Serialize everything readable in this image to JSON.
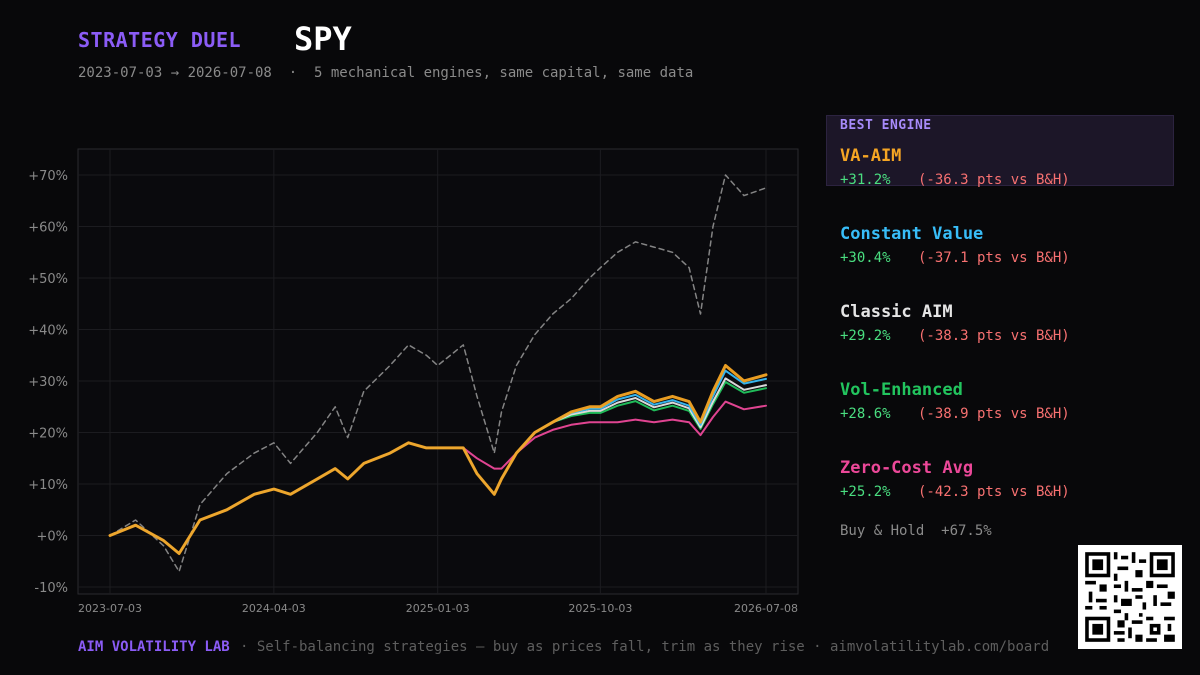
{
  "header": {
    "brand": "STRATEGY DUEL",
    "ticker": "SPY",
    "subtitle": "2023-07-03 → 2026-07-08  ·  5 mechanical engines, same capital, same data"
  },
  "panel": {
    "best_label": "BEST ENGINE",
    "engines": [
      {
        "name": "VA-AIM",
        "ret": "+31.2%",
        "diff": "(-36.3 pts vs B&H)",
        "color": "#f5a524"
      },
      {
        "name": "Constant Value",
        "ret": "+30.4%",
        "diff": "(-37.1 pts vs B&H)",
        "color": "#38bdf8"
      },
      {
        "name": "Classic AIM",
        "ret": "+29.2%",
        "diff": "(-38.3 pts vs B&H)",
        "color": "#e5e5e5"
      },
      {
        "name": "Vol-Enhanced",
        "ret": "+28.6%",
        "diff": "(-38.9 pts vs B&H)",
        "color": "#22c55e"
      },
      {
        "name": "Zero-Cost Avg",
        "ret": "+25.2%",
        "diff": "(-42.3 pts vs B&H)",
        "color": "#ec4899"
      }
    ],
    "buy_hold": "Buy & Hold  +67.5%"
  },
  "footer": {
    "brand": "AIM VOLATILITY LAB",
    "text": "· Self-balancing strategies — buy as prices fall, trim as they rise · aimvolatilitylab.com/board"
  },
  "chart_data": {
    "type": "line",
    "x": [
      "2023-07-03",
      "2023-08-15",
      "2023-10-01",
      "2023-10-27",
      "2023-12-01",
      "2024-01-15",
      "2024-03-01",
      "2024-04-03",
      "2024-05-01",
      "2024-06-15",
      "2024-07-15",
      "2024-08-05",
      "2024-09-01",
      "2024-10-15",
      "2024-11-15",
      "2024-12-15",
      "2025-01-03",
      "2025-02-15",
      "2025-03-10",
      "2025-04-08",
      "2025-04-20",
      "2025-05-15",
      "2025-06-15",
      "2025-07-15",
      "2025-08-15",
      "2025-09-15",
      "2025-10-03",
      "2025-11-01",
      "2025-12-01",
      "2026-01-01",
      "2026-02-01",
      "2026-03-01",
      "2026-03-20",
      "2026-04-10",
      "2026-05-01",
      "2026-06-01",
      "2026-07-08"
    ],
    "series": [
      {
        "name": "VA-AIM",
        "color": "#f5a524",
        "width": 3,
        "dashed": false,
        "values": [
          0,
          2,
          -1,
          -3.5,
          3,
          5,
          8,
          9,
          8,
          11,
          13,
          11,
          14,
          16,
          18,
          17,
          17,
          17,
          12,
          8,
          11,
          16,
          20,
          22,
          24,
          25,
          25,
          27,
          28,
          26,
          27,
          26,
          22,
          28,
          33,
          30,
          31.2
        ]
      },
      {
        "name": "Constant Value",
        "color": "#38bdf8",
        "width": 2,
        "dashed": false,
        "values": [
          0,
          2,
          -1,
          -3.5,
          3,
          5,
          8,
          9,
          8,
          11,
          13,
          11,
          14,
          16,
          18,
          17,
          17,
          17,
          12,
          8,
          11,
          16,
          20,
          22,
          23.8,
          24.6,
          24.6,
          26.4,
          27.3,
          25.4,
          26.3,
          25.2,
          21.5,
          27,
          32,
          29.5,
          30.4
        ]
      },
      {
        "name": "Classic AIM",
        "color": "#e5e5e5",
        "width": 2,
        "dashed": false,
        "values": [
          0,
          2,
          -1,
          -3.5,
          3,
          5,
          8,
          9,
          8,
          11,
          13,
          11,
          14,
          16,
          18,
          17,
          17,
          17,
          12,
          8,
          11,
          16,
          20,
          22,
          23.5,
          24.2,
          24.2,
          25.8,
          26.7,
          24.9,
          25.8,
          24.7,
          21,
          26,
          30.5,
          28.3,
          29.2
        ]
      },
      {
        "name": "Vol-Enhanced",
        "color": "#22c55e",
        "width": 2,
        "dashed": false,
        "values": [
          0,
          2,
          -1,
          -3.5,
          3,
          5,
          8,
          9,
          8,
          11,
          13,
          11,
          14,
          16,
          18,
          17,
          17,
          17,
          12,
          8,
          11,
          16,
          20,
          22,
          23.2,
          23.8,
          23.8,
          25.2,
          26.1,
          24.3,
          25.2,
          24.2,
          20.7,
          25.5,
          29.8,
          27.7,
          28.6
        ]
      },
      {
        "name": "Zero-Cost Avg",
        "color": "#ec4899",
        "width": 2,
        "dashed": false,
        "values": [
          0,
          2,
          -1,
          -3.5,
          3,
          5,
          8,
          9,
          8,
          11,
          13,
          11,
          14,
          16,
          18,
          17,
          17,
          17,
          15,
          13,
          13,
          16,
          19,
          20.5,
          21.5,
          22,
          22,
          22,
          22.5,
          22,
          22.5,
          22,
          19.5,
          23,
          26,
          24.5,
          25.2
        ]
      },
      {
        "name": "Buy & Hold",
        "color": "#9a9a9a",
        "width": 1.5,
        "dashed": true,
        "values": [
          0,
          3,
          -2,
          -7,
          6,
          12,
          16,
          18,
          14,
          20,
          25,
          19,
          28,
          33,
          37,
          35,
          33,
          37,
          27,
          16,
          24,
          33,
          39,
          43,
          46,
          50,
          52,
          55,
          57,
          56,
          55,
          52,
          43,
          60,
          70,
          66,
          67.5
        ]
      }
    ],
    "ylim": [
      -10,
      72
    ],
    "yticks": [
      -10,
      0,
      10,
      20,
      30,
      40,
      50,
      60,
      70
    ],
    "ytick_labels": [
      "-10%",
      "+0%",
      "+10%",
      "+20%",
      "+30%",
      "+40%",
      "+50%",
      "+60%",
      "+70%"
    ],
    "xtick_labels": [
      "2023-07-03",
      "2024-04-03",
      "2025-01-03",
      "2025-10-03",
      "2026-07-08"
    ],
    "grid": true,
    "title": "",
    "xlabel": "",
    "ylabel": ""
  }
}
